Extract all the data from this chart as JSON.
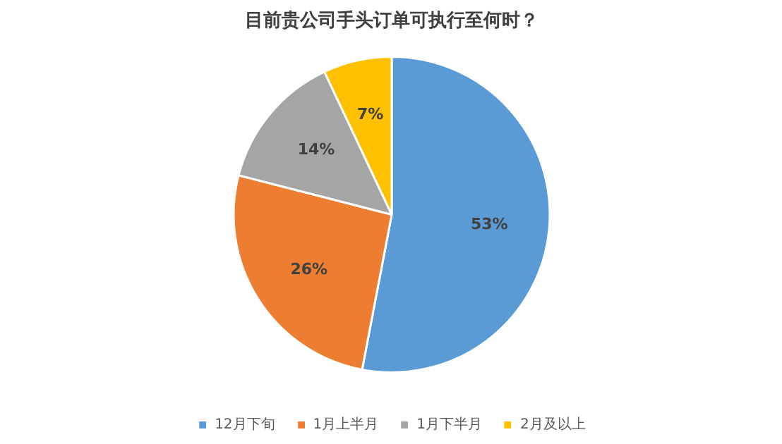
{
  "chart_data": {
    "type": "pie",
    "title": "目前贵公司手头订单可执行至何时？",
    "categories": [
      "12月下旬",
      "1月上半月",
      "1月下半月",
      "2月及以上"
    ],
    "values": [
      53,
      26,
      14,
      7
    ],
    "colors": [
      "#5b9bd5",
      "#ed7d31",
      "#a5a5a5",
      "#ffc000"
    ],
    "value_labels": [
      "53%",
      "26%",
      "14%",
      "7%"
    ],
    "legend": "bottom"
  }
}
